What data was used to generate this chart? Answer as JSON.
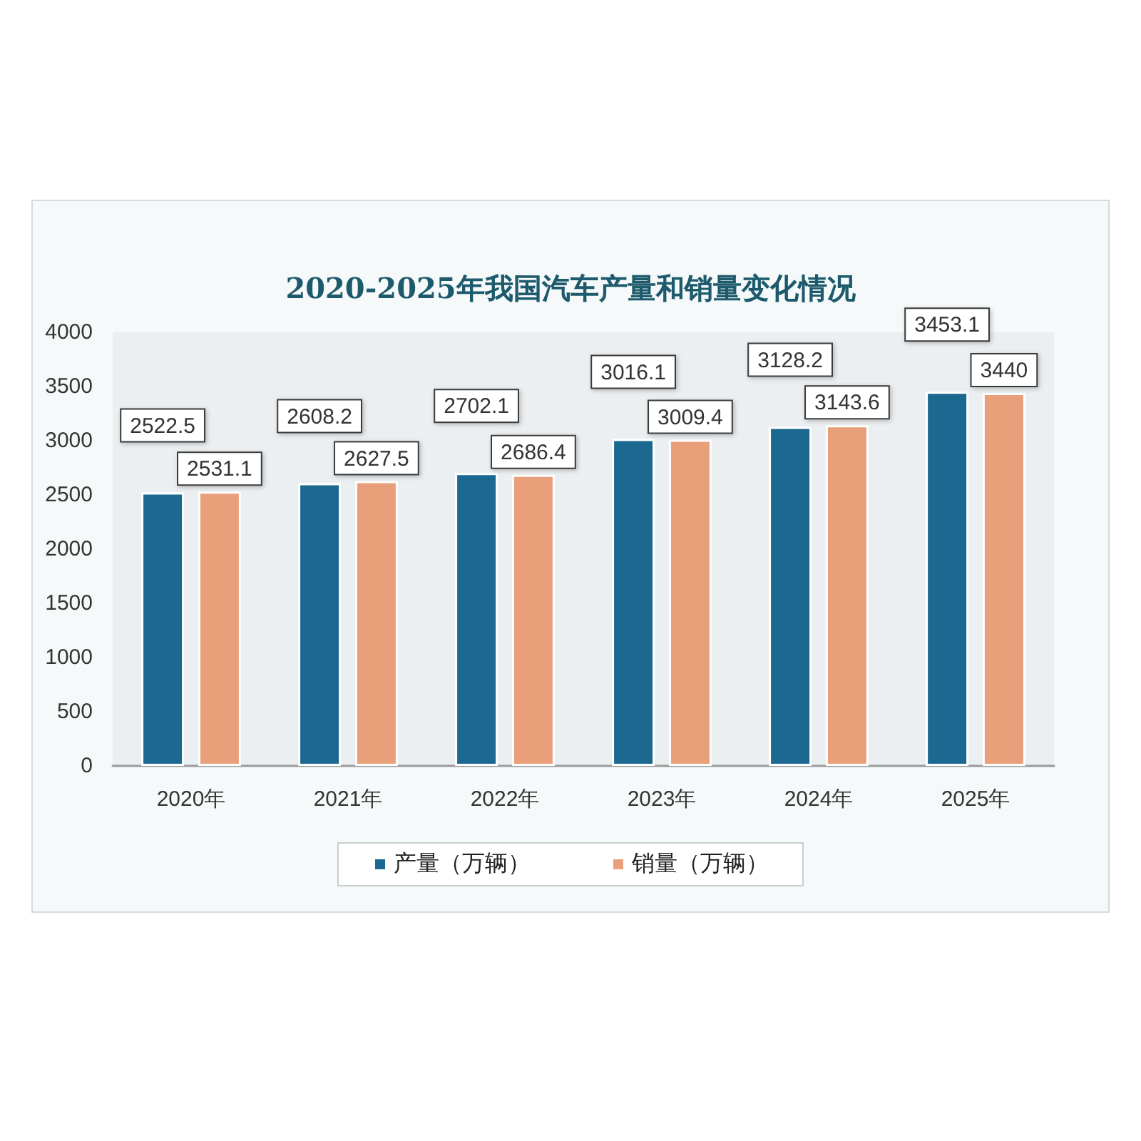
{
  "chart_data": {
    "type": "bar",
    "title": "2020-2025年我国汽车产量和销量变化情况",
    "categories": [
      "2020年",
      "2021年",
      "2022年",
      "2023年",
      "2024年",
      "2025年"
    ],
    "series": [
      {
        "name": "产量（万辆）",
        "color": "#1b6890",
        "values": [
          2522.5,
          2608.2,
          2702.1,
          3016.1,
          3128.2,
          3453.1
        ]
      },
      {
        "name": "销量（万辆）",
        "color": "#e9a07a",
        "values": [
          2531.1,
          2627.5,
          2686.4,
          3009.4,
          3143.6,
          3440
        ]
      }
    ],
    "ylim": [
      0,
      4000
    ],
    "yticks": [
      0,
      500,
      1000,
      1500,
      2000,
      2500,
      3000,
      3500,
      4000
    ],
    "grid": false,
    "legend": "bottom",
    "data_labels": true
  }
}
